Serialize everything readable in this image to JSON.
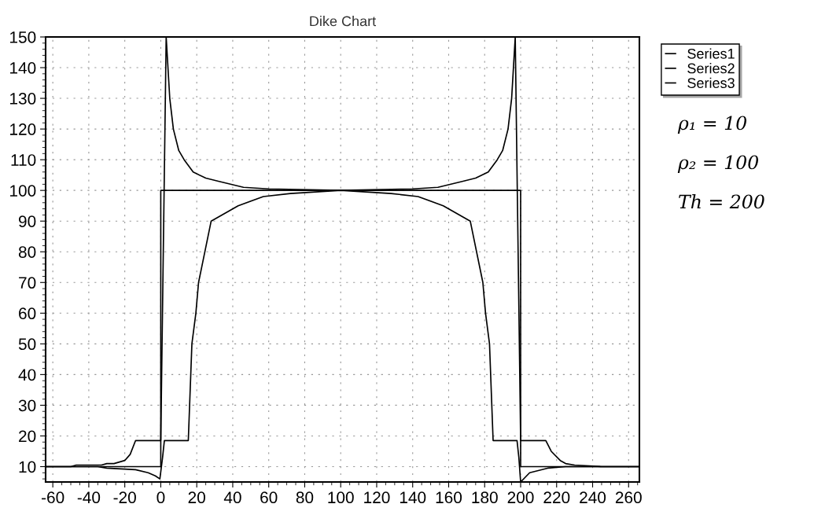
{
  "chart_data": {
    "type": "line",
    "title": "Dike Chart",
    "series": [
      {
        "name": "Series1",
        "color": "#000000",
        "x": [
          -64,
          -50,
          -47,
          -33,
          -30,
          -26,
          -20,
          -17,
          -14,
          0,
          3,
          5,
          7,
          10,
          13,
          18,
          25,
          32,
          46,
          60,
          100,
          140,
          154,
          168,
          175,
          182,
          187,
          190,
          193,
          195,
          197,
          200,
          214,
          217,
          222,
          225,
          230,
          245,
          266
        ],
        "values": [
          10,
          10,
          10.5,
          10.5,
          11,
          11,
          12,
          14,
          18.5,
          18.5,
          150,
          130,
          120,
          113,
          110,
          106,
          104,
          103,
          101,
          100.5,
          100,
          100.5,
          101,
          103,
          104,
          106,
          110,
          113,
          120,
          130,
          150,
          18.5,
          18.5,
          15,
          12,
          11,
          10.5,
          10,
          10
        ]
      },
      {
        "name": "Series2",
        "color": "#000000",
        "x": [
          -64,
          0,
          0,
          200,
          200,
          266
        ],
        "values": [
          10,
          10,
          100,
          100,
          10,
          10
        ]
      },
      {
        "name": "Series3",
        "color": "#000000",
        "x": [
          -64,
          -35,
          -30,
          -14,
          -7,
          -3,
          -0.5,
          1,
          2,
          15.3,
          17.3,
          19.5,
          21,
          28,
          43,
          57,
          72,
          100,
          128,
          143,
          157,
          172,
          179,
          180.5,
          182.7,
          184.7,
          198,
          199,
          200,
          205,
          215,
          225,
          266
        ],
        "values": [
          10,
          10,
          9.5,
          9,
          8,
          7,
          6,
          13,
          18.5,
          18.5,
          50,
          60,
          70,
          90,
          95,
          98,
          99,
          100,
          99,
          98,
          95,
          90,
          70,
          60,
          50,
          18.5,
          18.5,
          13,
          5,
          8,
          9.5,
          10,
          10
        ]
      }
    ],
    "xlim": [
      -64,
      266
    ],
    "xticks": [
      -60,
      -40,
      -20,
      0,
      20,
      40,
      60,
      80,
      100,
      120,
      140,
      160,
      180,
      200,
      220,
      240,
      260
    ],
    "ylim": [
      5,
      150
    ],
    "yticks": [
      10,
      20,
      30,
      40,
      50,
      60,
      70,
      80,
      90,
      100,
      110,
      120,
      130,
      140,
      150
    ],
    "grid": true,
    "legend": "top right",
    "marker": "none",
    "line_style": "solid",
    "annotations": [
      "ρ₁ = 10",
      "ρ₂ = 100",
      "Th = 200"
    ]
  }
}
